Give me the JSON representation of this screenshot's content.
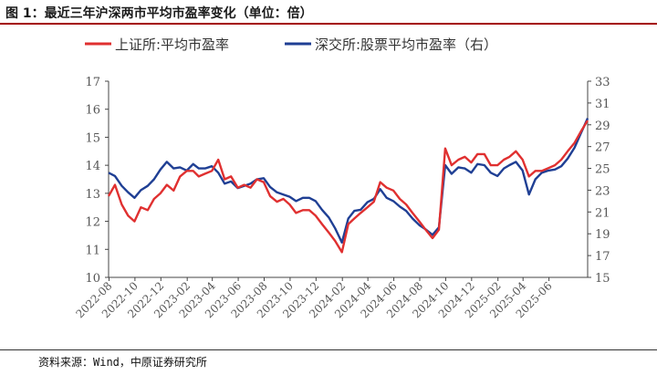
{
  "header": {
    "title": "图 1：最近三年沪深两市平均市盈率变化（单位：倍）"
  },
  "footer": {
    "source": "资料来源：Wind，中原证券研究所"
  },
  "colors": {
    "accent": "#a40000",
    "series_red": "#e03030",
    "series_blue": "#1f3f94"
  },
  "chart_data": {
    "type": "line",
    "title": "",
    "xlabel": "",
    "ylabel": "",
    "y2label": "",
    "x_ticks": [
      "2022-08",
      "2022-10",
      "2022-12",
      "2023-02",
      "2023-04",
      "2023-06",
      "2023-08",
      "2023-10",
      "2023-12",
      "2024-02",
      "2024-04",
      "2024-06",
      "2024-08",
      "2024-10",
      "2024-12",
      "2025-02",
      "2025-04",
      "2025-06"
    ],
    "ylim": [
      10,
      17
    ],
    "y_ticks": [
      10,
      11,
      12,
      13,
      14,
      15,
      16,
      17
    ],
    "y2lim": [
      15,
      33
    ],
    "y2_ticks": [
      15,
      17,
      19,
      21,
      23,
      25,
      27,
      29,
      31,
      33
    ],
    "grid": false,
    "legend_position": "top",
    "series": [
      {
        "name": "上证所:平均市盈率",
        "axis": "left",
        "color": "#e03030",
        "x": [
          "2022-07-31",
          "2022-08-15",
          "2022-08-31",
          "2022-09-15",
          "2022-09-30",
          "2022-10-15",
          "2022-10-31",
          "2022-11-15",
          "2022-11-30",
          "2022-12-15",
          "2022-12-31",
          "2023-01-15",
          "2023-01-31",
          "2023-02-15",
          "2023-02-28",
          "2023-03-15",
          "2023-03-31",
          "2023-04-15",
          "2023-04-30",
          "2023-05-15",
          "2023-05-31",
          "2023-06-15",
          "2023-06-30",
          "2023-07-15",
          "2023-07-31",
          "2023-08-15",
          "2023-08-31",
          "2023-09-15",
          "2023-09-30",
          "2023-10-15",
          "2023-10-31",
          "2023-11-15",
          "2023-11-30",
          "2023-12-15",
          "2023-12-31",
          "2024-01-15",
          "2024-01-31",
          "2024-02-15",
          "2024-02-29",
          "2024-03-15",
          "2024-03-31",
          "2024-04-15",
          "2024-04-30",
          "2024-05-15",
          "2024-05-31",
          "2024-06-15",
          "2024-06-30",
          "2024-07-15",
          "2024-07-31",
          "2024-08-15",
          "2024-08-31",
          "2024-09-15",
          "2024-09-30",
          "2024-10-15",
          "2024-10-31",
          "2024-11-15",
          "2024-11-30",
          "2024-12-15",
          "2024-12-31",
          "2025-01-15",
          "2025-01-31",
          "2025-02-15",
          "2025-02-28",
          "2025-03-15",
          "2025-03-31",
          "2025-04-15",
          "2025-04-30",
          "2025-05-15",
          "2025-05-31",
          "2025-06-15",
          "2025-06-30",
          "2025-07-15",
          "2025-07-31",
          "2025-08-15",
          "2025-08-31"
        ],
        "values": [
          12.9,
          13.3,
          12.6,
          12.2,
          12.0,
          12.5,
          12.4,
          12.8,
          13.0,
          13.3,
          13.1,
          13.6,
          13.8,
          13.8,
          13.6,
          13.7,
          13.8,
          14.2,
          13.5,
          13.6,
          13.2,
          13.3,
          13.2,
          13.5,
          13.4,
          12.9,
          12.7,
          12.8,
          12.6,
          12.3,
          12.4,
          12.4,
          12.2,
          11.9,
          11.6,
          11.3,
          10.9,
          11.9,
          12.1,
          12.3,
          12.5,
          12.7,
          13.4,
          13.2,
          13.1,
          12.8,
          12.6,
          12.3,
          12.0,
          11.7,
          11.4,
          11.7,
          14.6,
          14.0,
          14.2,
          14.3,
          14.1,
          14.4,
          14.4,
          14.0,
          14.0,
          14.2,
          14.3,
          14.5,
          14.2,
          13.6,
          13.8,
          13.8,
          13.9,
          14.0,
          14.2,
          14.5,
          14.8,
          15.2,
          15.6
        ]
      },
      {
        "name": "深交所:股票平均市盈率（右）",
        "axis": "right",
        "color": "#1f3f94",
        "x": [
          "2022-07-31",
          "2022-08-15",
          "2022-08-31",
          "2022-09-15",
          "2022-09-30",
          "2022-10-15",
          "2022-10-31",
          "2022-11-15",
          "2022-11-30",
          "2022-12-15",
          "2022-12-31",
          "2023-01-15",
          "2023-01-31",
          "2023-02-15",
          "2023-02-28",
          "2023-03-15",
          "2023-03-31",
          "2023-04-15",
          "2023-04-30",
          "2023-05-15",
          "2023-05-31",
          "2023-06-15",
          "2023-06-30",
          "2023-07-15",
          "2023-07-31",
          "2023-08-15",
          "2023-08-31",
          "2023-09-15",
          "2023-09-30",
          "2023-10-15",
          "2023-10-31",
          "2023-11-15",
          "2023-11-30",
          "2023-12-15",
          "2023-12-31",
          "2024-01-15",
          "2024-01-31",
          "2024-02-15",
          "2024-02-29",
          "2024-03-15",
          "2024-03-31",
          "2024-04-15",
          "2024-04-30",
          "2024-05-15",
          "2024-05-31",
          "2024-06-15",
          "2024-06-30",
          "2024-07-15",
          "2024-07-31",
          "2024-08-15",
          "2024-08-31",
          "2024-09-15",
          "2024-09-30",
          "2024-10-15",
          "2024-10-31",
          "2024-11-15",
          "2024-11-30",
          "2024-12-15",
          "2024-12-31",
          "2025-01-15",
          "2025-01-31",
          "2025-02-15",
          "2025-02-28",
          "2025-03-15",
          "2025-03-31",
          "2025-04-15",
          "2025-04-30",
          "2025-05-15",
          "2025-05-31",
          "2025-06-15",
          "2025-06-30",
          "2025-07-15",
          "2025-07-31",
          "2025-08-15",
          "2025-08-31"
        ],
        "values": [
          24.6,
          24.3,
          23.4,
          22.8,
          22.3,
          23.0,
          23.4,
          24.0,
          24.9,
          25.6,
          25.0,
          25.1,
          24.8,
          25.4,
          25.0,
          25.0,
          25.2,
          24.6,
          23.6,
          23.8,
          23.2,
          23.4,
          23.6,
          24.0,
          24.1,
          23.3,
          22.8,
          22.6,
          22.4,
          22.0,
          22.3,
          22.3,
          22.0,
          21.2,
          20.5,
          19.5,
          18.2,
          20.4,
          21.1,
          21.2,
          21.9,
          22.2,
          23.1,
          22.3,
          22.0,
          21.5,
          21.1,
          20.4,
          19.8,
          19.4,
          18.9,
          19.6,
          25.3,
          24.5,
          25.1,
          25.0,
          24.6,
          25.4,
          25.3,
          24.6,
          24.3,
          25.0,
          25.3,
          25.6,
          24.8,
          22.6,
          24.0,
          24.6,
          24.8,
          24.9,
          25.2,
          25.9,
          26.9,
          28.2,
          29.6
        ]
      }
    ]
  }
}
